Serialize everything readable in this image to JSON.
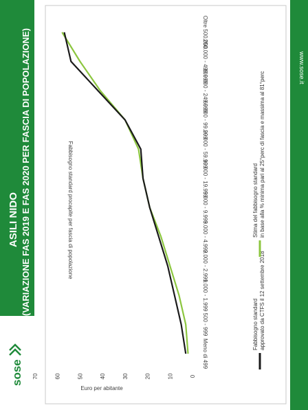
{
  "slide": {
    "title_line1": "ASILI NIDO",
    "title_line2": "(VARIAZIONE FAS 2019 E FAS 2020 PER FASCIA DI POPOLAZIONE)",
    "logo_text": "sose",
    "footer_url": "www.sose.it",
    "brand_color": "#1f8a3a"
  },
  "chart_data": {
    "type": "line",
    "title": "Fabbisogno standard procapite per fascia di popolazione",
    "ylabel": "Euro per abitante",
    "xlabel": "",
    "ylim": [
      0,
      70
    ],
    "yticks": [
      0,
      10,
      20,
      30,
      40,
      50,
      60,
      70
    ],
    "grid": false,
    "legend_position": "bottom",
    "categories": [
      "Meno di 499",
      "500 - 999",
      "1.000 - 1.999",
      "2.000 - 2.999",
      "3.000 - 4.999",
      "5.000 - 9.999",
      "10.000 - 19.999",
      "20.000 - 59.999",
      "60.000 - 99.999",
      "100.000 - 249.999",
      "250.000 - 499.999",
      "Oltre 500.000"
    ],
    "series": [
      {
        "name": "Fabbisogno standard approvato da CTFS il 12 settembre 2018",
        "color": "#1a1a1a",
        "values": [
          3,
          5,
          8,
          11,
          15,
          19,
          22,
          23,
          30,
          42,
          54,
          57
        ]
      },
      {
        "name": "Stima del fabbisogno standard in base alla % minima pari al 25°perc di fascia e massima al 81°perc",
        "color": "#8cc63f",
        "values": [
          2,
          3,
          6,
          10,
          14,
          19,
          22,
          24,
          30,
          41,
          50,
          58
        ]
      }
    ]
  }
}
